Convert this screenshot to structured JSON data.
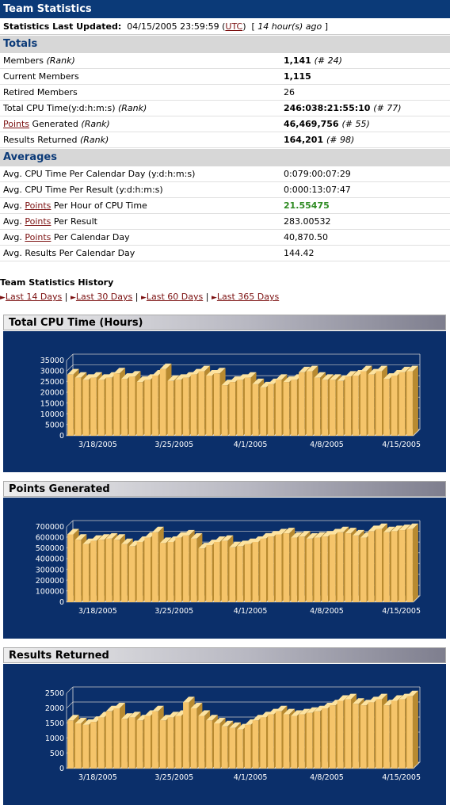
{
  "page_title": "Team Statistics",
  "updated": {
    "label": "Statistics Last Updated:",
    "date": "04/15/2005 23:59:59",
    "tz": "UTC",
    "ago": "14 hour(s) ago"
  },
  "totals": {
    "header": "Totals",
    "rows": [
      {
        "label": "Members",
        "rank_label": "(Rank)",
        "value": "1,141",
        "rank": "(# 24)"
      },
      {
        "label": "Current Members",
        "value": "1,115"
      },
      {
        "label": "Retired Members",
        "value": "26"
      },
      {
        "label": "Total CPU Time(y:d:h:m:s)",
        "rank_label": "(Rank)",
        "value": "246:038:21:55:10",
        "rank": "(# 77)"
      },
      {
        "link": "Points",
        "label": "Generated",
        "rank_label": "(Rank)",
        "value": "46,469,756",
        "rank": "(# 55)"
      },
      {
        "label": "Results Returned",
        "rank_label": "(Rank)",
        "value": "164,201",
        "rank": "(# 98)"
      }
    ]
  },
  "averages": {
    "header": "Averages",
    "rows": [
      {
        "label": "Avg. CPU Time Per Calendar Day (y:d:h:m:s)",
        "value": "0:079:00:07:29"
      },
      {
        "label": "Avg. CPU Time Per Result (y:d:h:m:s)",
        "value": "0:000:13:07:47"
      },
      {
        "pre": "Avg.",
        "link": "Points",
        "post": "Per Hour of CPU Time",
        "value": "21.55475"
      },
      {
        "pre": "Avg.",
        "link": "Points",
        "post": "Per Result",
        "value": "283.00532"
      },
      {
        "pre": "Avg.",
        "link": "Points",
        "post": "Per Calendar Day",
        "value": "40,870.50"
      },
      {
        "label": "Avg. Results Per Calendar Day",
        "value": "144.42"
      }
    ]
  },
  "history": {
    "title": "Team Statistics History",
    "links": [
      "Last 14 Days",
      "Last 30 Days",
      "Last 60 Days",
      "Last 365 Days"
    ]
  },
  "colors": {
    "navy": "#0b3a78",
    "chart_bg": "#0b2f6a",
    "bar": "#f5c46a",
    "link": "#7b1010",
    "green": "#2e8b22"
  },
  "chart_data": [
    {
      "type": "bar",
      "title": "Total CPU Time (Hours)",
      "x_tick_labels": [
        "3/18/2005",
        "3/25/2005",
        "4/1/2005",
        "4/8/2005",
        "4/15/2005"
      ],
      "ylim": [
        0,
        35000
      ],
      "yticks": [
        0,
        5000,
        10000,
        15000,
        20000,
        25000,
        30000,
        35000
      ],
      "values": [
        28500,
        27000,
        26000,
        27000,
        26000,
        27000,
        29000,
        26500,
        27500,
        25000,
        26000,
        28000,
        31000,
        25500,
        26000,
        27000,
        28500,
        30000,
        28000,
        29000,
        23500,
        25000,
        26000,
        27000,
        24000,
        22500,
        24000,
        26000,
        25000,
        26000,
        29500,
        30000,
        27000,
        26000,
        26000,
        25500,
        27500,
        28000,
        30000,
        28500,
        30000,
        26500,
        28000,
        29500,
        30000
      ]
    },
    {
      "type": "bar",
      "title": "Points Generated",
      "x_tick_labels": [
        "3/18/2005",
        "3/25/2005",
        "4/1/2005",
        "4/8/2005",
        "4/15/2005"
      ],
      "ylim": [
        0,
        700000
      ],
      "yticks": [
        0,
        100000,
        200000,
        300000,
        400000,
        500000,
        600000,
        700000
      ],
      "values": [
        630000,
        580000,
        540000,
        570000,
        580000,
        590000,
        580000,
        540000,
        520000,
        560000,
        600000,
        650000,
        550000,
        560000,
        600000,
        620000,
        590000,
        500000,
        530000,
        560000,
        570000,
        510000,
        520000,
        540000,
        560000,
        590000,
        610000,
        630000,
        640000,
        600000,
        610000,
        590000,
        600000,
        610000,
        630000,
        650000,
        640000,
        620000,
        600000,
        660000,
        680000,
        650000,
        660000,
        670000,
        680000
      ]
    },
    {
      "type": "bar",
      "title": "Results Returned",
      "x_tick_labels": [
        "3/18/2005",
        "3/25/2005",
        "4/1/2005",
        "4/8/2005",
        "4/15/2005"
      ],
      "ylim": [
        0,
        2500
      ],
      "yticks": [
        0,
        500,
        1000,
        1500,
        2000,
        2500
      ],
      "values": [
        1600,
        1500,
        1450,
        1550,
        1700,
        1900,
        2000,
        1650,
        1700,
        1600,
        1750,
        1900,
        1600,
        1700,
        1750,
        2200,
        2000,
        1750,
        1600,
        1500,
        1400,
        1350,
        1300,
        1450,
        1600,
        1700,
        1800,
        1900,
        1800,
        1750,
        1800,
        1850,
        1900,
        2000,
        2100,
        2250,
        2300,
        2150,
        2100,
        2200,
        2300,
        2100,
        2250,
        2300,
        2400
      ]
    }
  ]
}
